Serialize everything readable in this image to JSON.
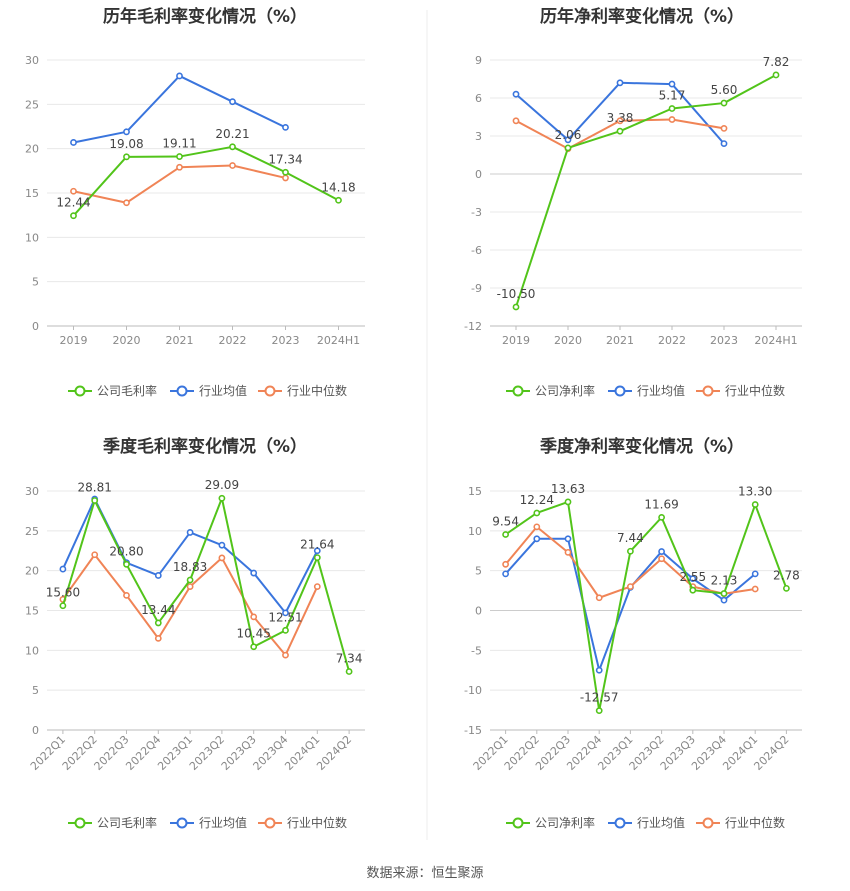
{
  "source": "数据来源：恒生聚源",
  "colors": {
    "company": "#52c41a",
    "industry_avg": "#3a75dd",
    "industry_median": "#f08456",
    "grid": "#e8e8e8",
    "axis_text": "#888888",
    "label_text": "#444444",
    "title": "#333333"
  },
  "chart_data": [
    {
      "type": "line",
      "title": "历年毛利率变化情况（%）",
      "categories": [
        "2019",
        "2020",
        "2021",
        "2022",
        "2023",
        "2024H1"
      ],
      "ylim": [
        0,
        30
      ],
      "yticks": [
        0,
        5,
        10,
        15,
        20,
        25,
        30
      ],
      "rotate_ticks": false,
      "series": [
        {
          "name": "公司毛利率",
          "key": "company",
          "values": [
            12.44,
            19.08,
            19.11,
            20.21,
            17.34,
            14.18
          ],
          "labels": [
            "12.44",
            "19.08",
            "19.11",
            "20.21",
            "17.34",
            "14.18"
          ]
        },
        {
          "name": "行业均值",
          "key": "industry_avg",
          "values": [
            20.7,
            21.9,
            28.2,
            25.3,
            22.4,
            null
          ]
        },
        {
          "name": "行业中位数",
          "key": "industry_median",
          "values": [
            15.2,
            13.9,
            17.9,
            18.1,
            16.7,
            null
          ]
        }
      ]
    },
    {
      "type": "line",
      "title": "历年净利率变化情况（%）",
      "categories": [
        "2019",
        "2020",
        "2021",
        "2022",
        "2023",
        "2024H1"
      ],
      "ylim": [
        -12,
        9
      ],
      "yticks": [
        -12,
        -9,
        -6,
        -3,
        0,
        3,
        6,
        9
      ],
      "rotate_ticks": false,
      "series": [
        {
          "name": "公司净利率",
          "key": "company",
          "values": [
            -10.5,
            2.06,
            3.38,
            5.17,
            5.6,
            7.82
          ],
          "labels": [
            "-10.50",
            "2.06",
            "3.38",
            "5.17",
            "5.60",
            "7.82"
          ]
        },
        {
          "name": "行业均值",
          "key": "industry_avg",
          "values": [
            6.3,
            2.7,
            7.2,
            7.1,
            2.4,
            null
          ]
        },
        {
          "name": "行业中位数",
          "key": "industry_median",
          "values": [
            4.2,
            2.0,
            4.2,
            4.3,
            3.6,
            null
          ]
        }
      ]
    },
    {
      "type": "line",
      "title": "季度毛利率变化情况（%）",
      "categories": [
        "2022Q1",
        "2022Q2",
        "2022Q3",
        "2022Q4",
        "2023Q1",
        "2023Q2",
        "2023Q3",
        "2023Q4",
        "2024Q1",
        "2024Q2"
      ],
      "ylim": [
        0,
        30
      ],
      "yticks": [
        0,
        5,
        10,
        15,
        20,
        25,
        30
      ],
      "rotate_ticks": true,
      "series": [
        {
          "name": "公司毛利率",
          "key": "company",
          "values": [
            15.6,
            28.81,
            20.8,
            13.44,
            18.83,
            29.09,
            10.45,
            12.51,
            21.64,
            7.34
          ],
          "labels": [
            "15.60",
            "28.81",
            "20.80",
            "13.44",
            "18.83",
            "29.09",
            "10.45",
            "12.51",
            "21.64",
            "7.34"
          ]
        },
        {
          "name": "行业均值",
          "key": "industry_avg",
          "values": [
            20.2,
            29.0,
            21.0,
            19.4,
            24.8,
            23.2,
            19.7,
            14.7,
            22.5,
            null
          ]
        },
        {
          "name": "行业中位数",
          "key": "industry_median",
          "values": [
            16.4,
            22.0,
            16.9,
            11.5,
            18.0,
            21.6,
            14.2,
            9.4,
            18.0,
            null
          ]
        }
      ]
    },
    {
      "type": "line",
      "title": "季度净利率变化情况（%）",
      "categories": [
        "2022Q1",
        "2022Q2",
        "2022Q3",
        "2022Q4",
        "2023Q1",
        "2023Q2",
        "2023Q3",
        "2023Q4",
        "2024Q1",
        "2024Q2"
      ],
      "ylim": [
        -15,
        15
      ],
      "yticks": [
        -15,
        -10,
        -5,
        0,
        5,
        10,
        15
      ],
      "rotate_ticks": true,
      "series": [
        {
          "name": "公司净利率",
          "key": "company",
          "values": [
            9.54,
            12.24,
            13.63,
            -12.57,
            7.44,
            11.69,
            2.55,
            2.13,
            13.3,
            2.78
          ],
          "labels": [
            "9.54",
            "12.24",
            "13.63",
            "-12.57",
            "7.44",
            "11.69",
            "2.55",
            "2.13",
            "13.30",
            "2.78"
          ]
        },
        {
          "name": "行业均值",
          "key": "industry_avg",
          "values": [
            4.6,
            9.0,
            9.0,
            -7.5,
            2.9,
            7.4,
            4.0,
            1.3,
            4.6,
            null
          ]
        },
        {
          "name": "行业中位数",
          "key": "industry_median",
          "values": [
            5.8,
            10.5,
            7.3,
            1.6,
            3.0,
            6.5,
            3.0,
            2.1,
            2.7,
            null
          ]
        }
      ]
    }
  ]
}
